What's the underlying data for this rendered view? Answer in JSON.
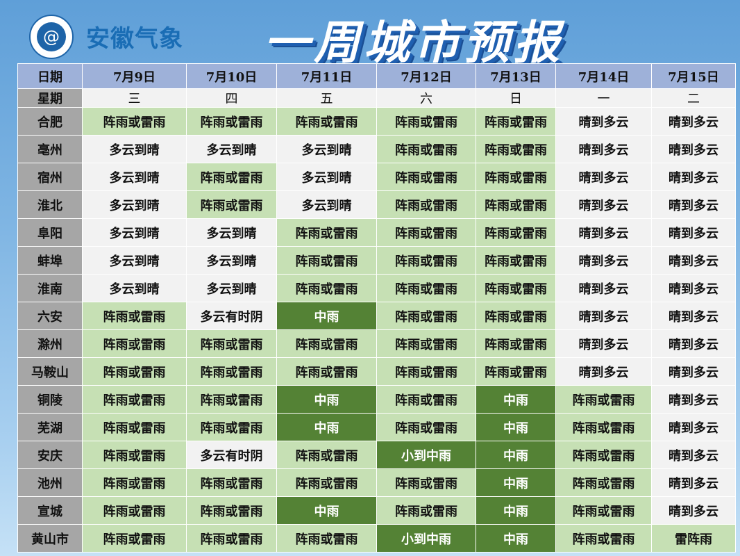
{
  "header": {
    "brand": "安徽气象",
    "title": "一周城市预报",
    "logo_icon": "cloud-swirl-logo-icon"
  },
  "colors": {
    "L": "#c6e0b4",
    "D": "#548235",
    "W": "#f2f2f2",
    "city": "#a6a6a6",
    "header": "#9eb1d9"
  },
  "table": {
    "date_label": "日期",
    "weekday_label": "星期",
    "dates": [
      "7月9日",
      "7月10日",
      "7月11日",
      "7月12日",
      "7月13日",
      "7月14日",
      "7月15日"
    ],
    "weekdays": [
      "三",
      "四",
      "五",
      "六",
      "日",
      "一",
      "二"
    ],
    "rows": [
      {
        "city": "合肥",
        "cells": [
          [
            "阵雨或雷雨",
            "L"
          ],
          [
            "阵雨或雷雨",
            "L"
          ],
          [
            "阵雨或雷雨",
            "L"
          ],
          [
            "阵雨或雷雨",
            "L"
          ],
          [
            "阵雨或雷雨",
            "L"
          ],
          [
            "晴到多云",
            "W"
          ],
          [
            "晴到多云",
            "W"
          ]
        ]
      },
      {
        "city": "亳州",
        "cells": [
          [
            "多云到晴",
            "W"
          ],
          [
            "多云到晴",
            "W"
          ],
          [
            "多云到晴",
            "W"
          ],
          [
            "阵雨或雷雨",
            "L"
          ],
          [
            "阵雨或雷雨",
            "L"
          ],
          [
            "晴到多云",
            "W"
          ],
          [
            "晴到多云",
            "W"
          ]
        ]
      },
      {
        "city": "宿州",
        "cells": [
          [
            "多云到晴",
            "W"
          ],
          [
            "阵雨或雷雨",
            "L"
          ],
          [
            "多云到晴",
            "W"
          ],
          [
            "阵雨或雷雨",
            "L"
          ],
          [
            "阵雨或雷雨",
            "L"
          ],
          [
            "晴到多云",
            "W"
          ],
          [
            "晴到多云",
            "W"
          ]
        ]
      },
      {
        "city": "淮北",
        "cells": [
          [
            "多云到晴",
            "W"
          ],
          [
            "阵雨或雷雨",
            "L"
          ],
          [
            "多云到晴",
            "W"
          ],
          [
            "阵雨或雷雨",
            "L"
          ],
          [
            "阵雨或雷雨",
            "L"
          ],
          [
            "晴到多云",
            "W"
          ],
          [
            "晴到多云",
            "W"
          ]
        ]
      },
      {
        "city": "阜阳",
        "cells": [
          [
            "多云到晴",
            "W"
          ],
          [
            "多云到晴",
            "W"
          ],
          [
            "阵雨或雷雨",
            "L"
          ],
          [
            "阵雨或雷雨",
            "L"
          ],
          [
            "阵雨或雷雨",
            "L"
          ],
          [
            "晴到多云",
            "W"
          ],
          [
            "晴到多云",
            "W"
          ]
        ]
      },
      {
        "city": "蚌埠",
        "cells": [
          [
            "多云到晴",
            "W"
          ],
          [
            "多云到晴",
            "W"
          ],
          [
            "阵雨或雷雨",
            "L"
          ],
          [
            "阵雨或雷雨",
            "L"
          ],
          [
            "阵雨或雷雨",
            "L"
          ],
          [
            "晴到多云",
            "W"
          ],
          [
            "晴到多云",
            "W"
          ]
        ]
      },
      {
        "city": "淮南",
        "cells": [
          [
            "多云到晴",
            "W"
          ],
          [
            "多云到晴",
            "W"
          ],
          [
            "阵雨或雷雨",
            "L"
          ],
          [
            "阵雨或雷雨",
            "L"
          ],
          [
            "阵雨或雷雨",
            "L"
          ],
          [
            "晴到多云",
            "W"
          ],
          [
            "晴到多云",
            "W"
          ]
        ]
      },
      {
        "city": "六安",
        "cells": [
          [
            "阵雨或雷雨",
            "L"
          ],
          [
            "多云有时阴",
            "W"
          ],
          [
            "中雨",
            "D"
          ],
          [
            "阵雨或雷雨",
            "L"
          ],
          [
            "阵雨或雷雨",
            "L"
          ],
          [
            "晴到多云",
            "W"
          ],
          [
            "晴到多云",
            "W"
          ]
        ]
      },
      {
        "city": "滁州",
        "cells": [
          [
            "阵雨或雷雨",
            "L"
          ],
          [
            "阵雨或雷雨",
            "L"
          ],
          [
            "阵雨或雷雨",
            "L"
          ],
          [
            "阵雨或雷雨",
            "L"
          ],
          [
            "阵雨或雷雨",
            "L"
          ],
          [
            "晴到多云",
            "W"
          ],
          [
            "晴到多云",
            "W"
          ]
        ]
      },
      {
        "city": "马鞍山",
        "cells": [
          [
            "阵雨或雷雨",
            "L"
          ],
          [
            "阵雨或雷雨",
            "L"
          ],
          [
            "阵雨或雷雨",
            "L"
          ],
          [
            "阵雨或雷雨",
            "L"
          ],
          [
            "阵雨或雷雨",
            "L"
          ],
          [
            "晴到多云",
            "W"
          ],
          [
            "晴到多云",
            "W"
          ]
        ]
      },
      {
        "city": "铜陵",
        "cells": [
          [
            "阵雨或雷雨",
            "L"
          ],
          [
            "阵雨或雷雨",
            "L"
          ],
          [
            "中雨",
            "D"
          ],
          [
            "阵雨或雷雨",
            "L"
          ],
          [
            "中雨",
            "D"
          ],
          [
            "阵雨或雷雨",
            "L"
          ],
          [
            "晴到多云",
            "W"
          ]
        ]
      },
      {
        "city": "芜湖",
        "cells": [
          [
            "阵雨或雷雨",
            "L"
          ],
          [
            "阵雨或雷雨",
            "L"
          ],
          [
            "中雨",
            "D"
          ],
          [
            "阵雨或雷雨",
            "L"
          ],
          [
            "中雨",
            "D"
          ],
          [
            "阵雨或雷雨",
            "L"
          ],
          [
            "晴到多云",
            "W"
          ]
        ]
      },
      {
        "city": "安庆",
        "cells": [
          [
            "阵雨或雷雨",
            "L"
          ],
          [
            "多云有时阴",
            "W"
          ],
          [
            "阵雨或雷雨",
            "L"
          ],
          [
            "小到中雨",
            "D"
          ],
          [
            "中雨",
            "D"
          ],
          [
            "阵雨或雷雨",
            "L"
          ],
          [
            "晴到多云",
            "W"
          ]
        ]
      },
      {
        "city": "池州",
        "cells": [
          [
            "阵雨或雷雨",
            "L"
          ],
          [
            "阵雨或雷雨",
            "L"
          ],
          [
            "阵雨或雷雨",
            "L"
          ],
          [
            "阵雨或雷雨",
            "L"
          ],
          [
            "中雨",
            "D"
          ],
          [
            "阵雨或雷雨",
            "L"
          ],
          [
            "晴到多云",
            "W"
          ]
        ]
      },
      {
        "city": "宣城",
        "cells": [
          [
            "阵雨或雷雨",
            "L"
          ],
          [
            "阵雨或雷雨",
            "L"
          ],
          [
            "中雨",
            "D"
          ],
          [
            "阵雨或雷雨",
            "L"
          ],
          [
            "中雨",
            "D"
          ],
          [
            "阵雨或雷雨",
            "L"
          ],
          [
            "晴到多云",
            "W"
          ]
        ]
      },
      {
        "city": "黄山市",
        "cells": [
          [
            "阵雨或雷雨",
            "L"
          ],
          [
            "阵雨或雷雨",
            "L"
          ],
          [
            "阵雨或雷雨",
            "L"
          ],
          [
            "小到中雨",
            "D"
          ],
          [
            "中雨",
            "D"
          ],
          [
            "阵雨或雷雨",
            "L"
          ],
          [
            "雷阵雨",
            "L"
          ]
        ]
      }
    ]
  }
}
